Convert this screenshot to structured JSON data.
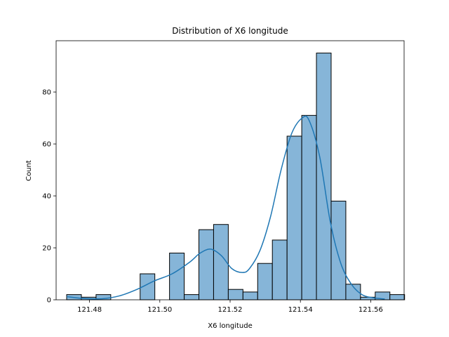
{
  "chart_data": {
    "type": "bar",
    "title": "Distribution of X6 longitude",
    "xlabel": "X6 longitude",
    "ylabel": "Count",
    "xlim": [
      121.4705,
      121.5695
    ],
    "ylim": [
      0,
      99.75
    ],
    "x_ticks": [
      121.48,
      121.5,
      121.52,
      121.54,
      121.56
    ],
    "x_tick_labels": [
      "121.48",
      "121.50",
      "121.52",
      "121.54",
      "121.56"
    ],
    "y_ticks": [
      0,
      20,
      40,
      60,
      80
    ],
    "y_tick_labels": [
      "0",
      "20",
      "40",
      "60",
      "80"
    ],
    "bins": {
      "start": 121.4735,
      "width": 0.00418,
      "counts": [
        2,
        1,
        2,
        0,
        0,
        10,
        0,
        18,
        2,
        27,
        29,
        4,
        3,
        14,
        23,
        63,
        71,
        95,
        38,
        6,
        1,
        3,
        2
      ]
    },
    "kde": {
      "x": [
        121.4735,
        121.4785,
        121.4835,
        121.4885,
        121.4935,
        121.4985,
        121.5035,
        121.5085,
        121.5115,
        121.5145,
        121.5175,
        121.5205,
        121.5235,
        121.5255,
        121.5285,
        121.5315,
        121.5345,
        121.5375,
        121.5405,
        121.5425,
        121.5455,
        121.5485,
        121.5515,
        121.5545,
        121.5575,
        121.5605,
        121.564
      ],
      "y": [
        1.2,
        0.5,
        0.4,
        1.5,
        4.0,
        7.3,
        10.0,
        14.5,
        18.0,
        19.5,
        17.0,
        12.0,
        10.5,
        12.0,
        19.0,
        32.0,
        50.0,
        64.0,
        70.0,
        69.0,
        55.0,
        30.0,
        14.0,
        6.0,
        2.0,
        0.8,
        0.3
      ]
    },
    "bar_color": "#86b5d8",
    "edge_color": "#000000",
    "line_color": "#1f77b4",
    "grid": false,
    "legend": false
  }
}
